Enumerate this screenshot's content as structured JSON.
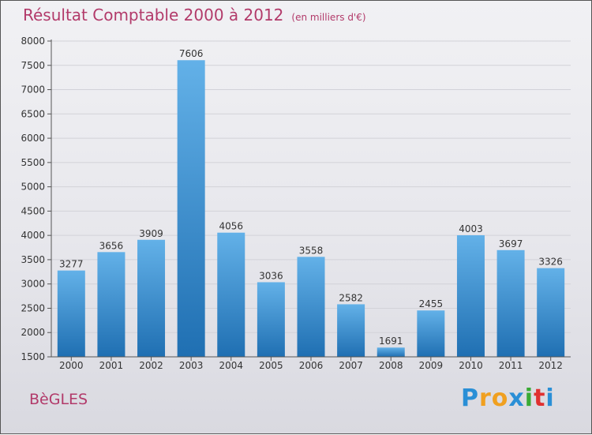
{
  "title": "Résultat Comptable 2000 à 2012",
  "unit": "(en milliers d'€)",
  "city": "BèGLES",
  "logo": {
    "letters": [
      "P",
      "r",
      "o",
      "x",
      "i",
      "t",
      "i"
    ],
    "colors": [
      "#2a8fd6",
      "#f0a020",
      "#f0a020",
      "#2a8fd6",
      "#3aaa35",
      "#e03030",
      "#2a8fd6"
    ]
  },
  "colors": {
    "title": "#b23a6a",
    "bar_top": "#63b1e8",
    "bar_bottom": "#1f6fb2",
    "axis": "#555555",
    "grid": "#d2d2d8"
  },
  "chart_data": {
    "type": "bar",
    "categories": [
      "2000",
      "2001",
      "2002",
      "2003",
      "2004",
      "2005",
      "2006",
      "2007",
      "2008",
      "2009",
      "2010",
      "2011",
      "2012"
    ],
    "values": [
      3277,
      3656,
      3909,
      7606,
      4056,
      3036,
      3558,
      2582,
      1691,
      2455,
      4003,
      3697,
      3326
    ],
    "ylim": [
      1500,
      8000
    ],
    "yticks": [
      1500,
      2000,
      2500,
      3000,
      3500,
      4000,
      4500,
      5000,
      5500,
      6000,
      6500,
      7000,
      7500,
      8000
    ],
    "grid": true,
    "data_labels": true
  }
}
